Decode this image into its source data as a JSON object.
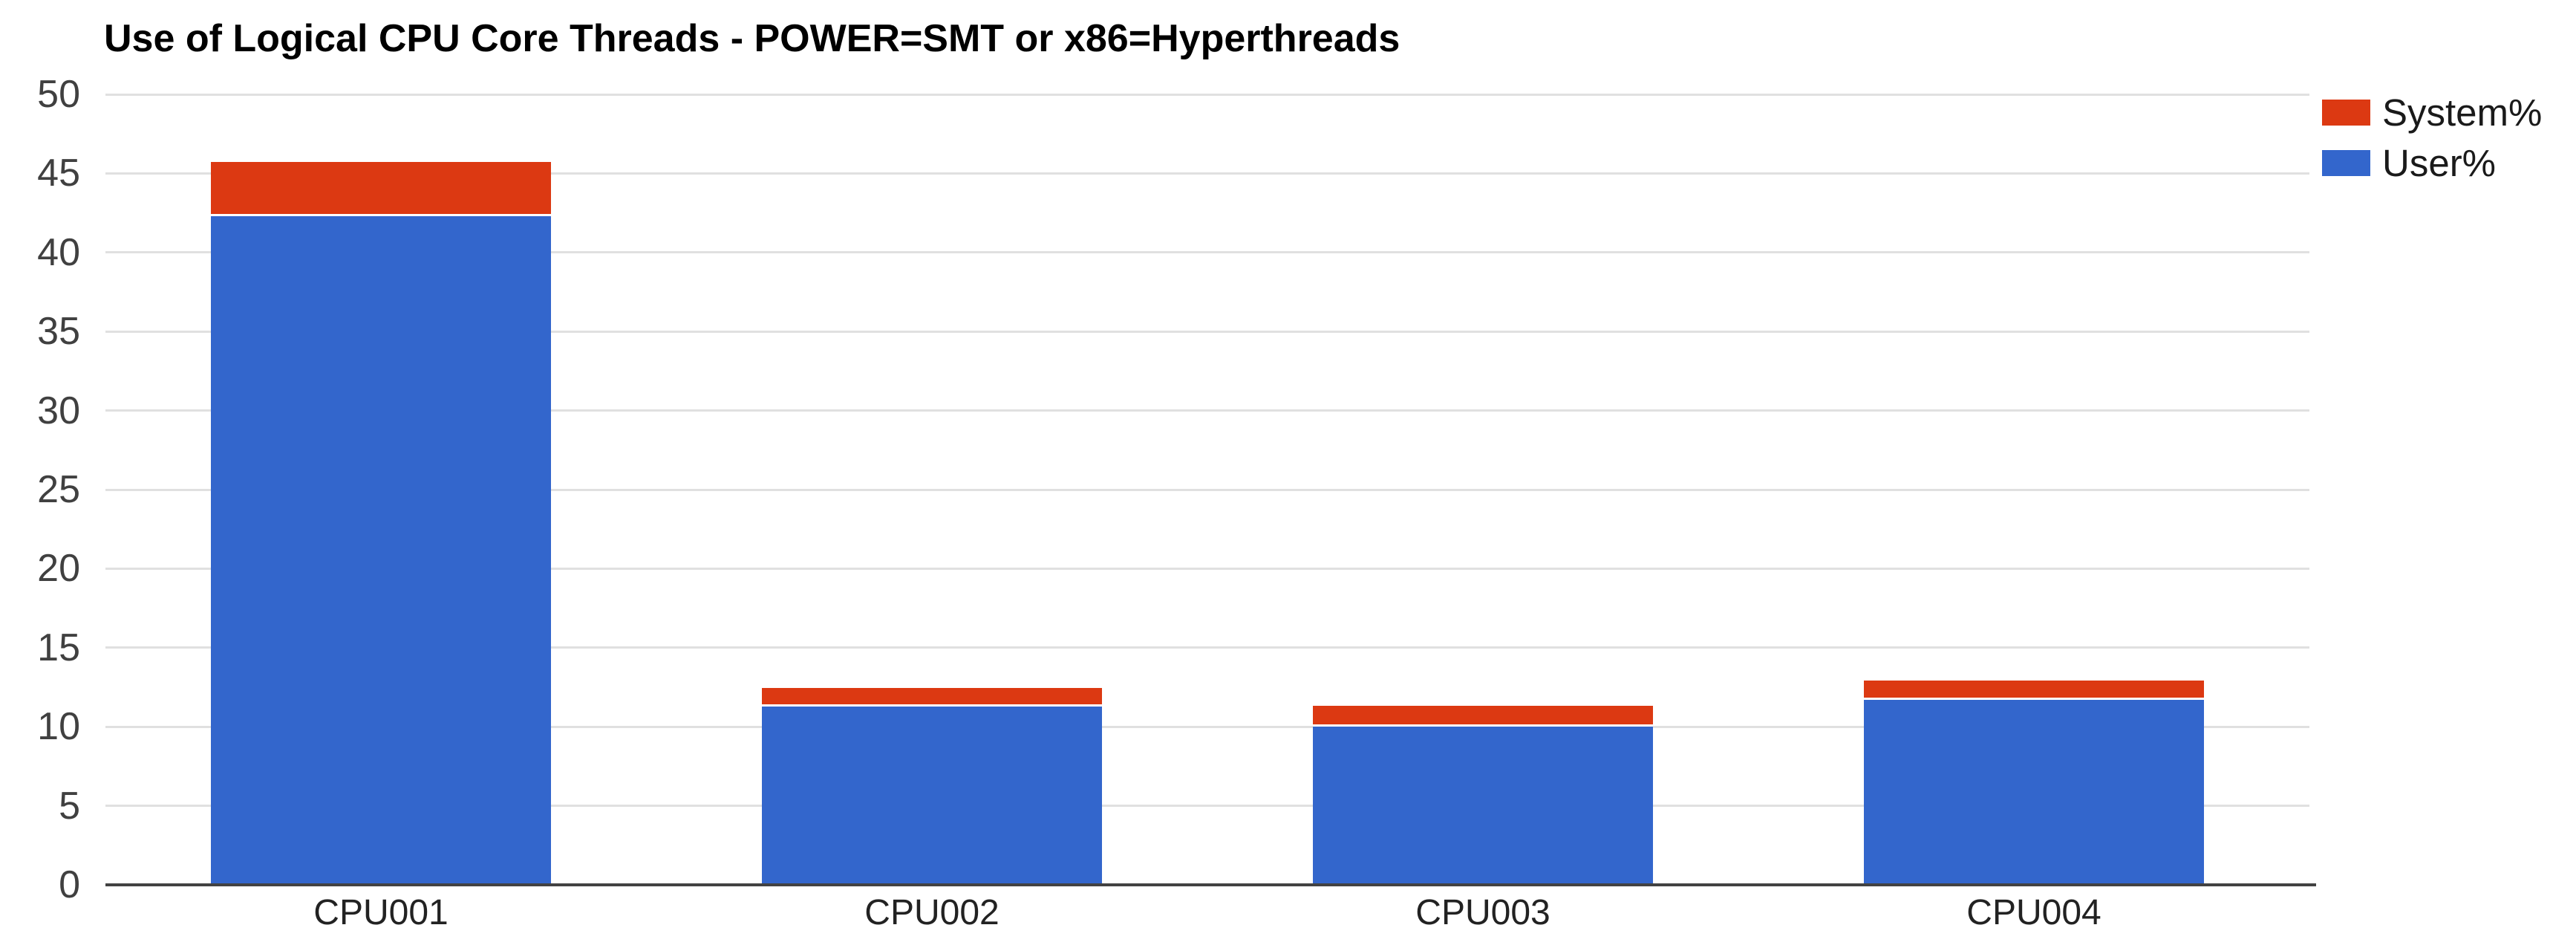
{
  "chart_data": {
    "type": "bar",
    "stacked": true,
    "title": "Use of Logical CPU Core Threads - POWER=SMT or x86=Hyperthreads",
    "categories": [
      "CPU001",
      "CPU002",
      "CPU003",
      "CPU004"
    ],
    "series": [
      {
        "name": "System%",
        "color": "#dc3912",
        "values": [
          3.3,
          1.0,
          1.2,
          1.1
        ]
      },
      {
        "name": "User%",
        "color": "#3366cc",
        "values": [
          42.3,
          11.3,
          10.0,
          11.7
        ]
      }
    ],
    "xlabel": "",
    "ylabel": "",
    "ylim": [
      0,
      50
    ],
    "y_ticks": [
      0,
      5,
      10,
      15,
      20,
      25,
      30,
      35,
      40,
      45,
      50
    ],
    "grid": true,
    "legend_position": "top-right"
  },
  "style": {
    "gridline_color": "#e0e0e0",
    "baseline_color": "#424242",
    "y_label_color": "#404040",
    "x_label_color": "#222222",
    "title_color": "#000000",
    "background_color": "#ffffff",
    "segment_gap_color": "#ffffff"
  }
}
